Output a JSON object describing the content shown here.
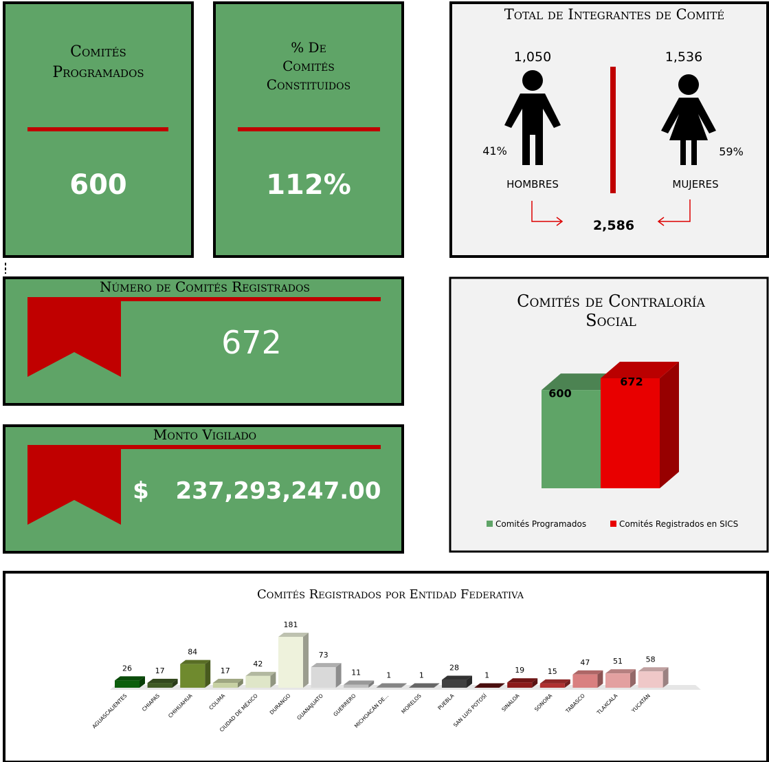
{
  "cards": [
    {
      "title_lines": [
        "Comités",
        "Programados"
      ],
      "value": "600"
    },
    {
      "title_lines": [
        "% De",
        "Comités",
        "Constituidos"
      ],
      "value": "112%"
    },
    {
      "title": "Número de Comités Registrados",
      "value": "672"
    },
    {
      "title": "Monto Vigilado",
      "currency": "$",
      "value": "237,293,247.00"
    }
  ],
  "members": {
    "title": "Total de Integrantes de Comité",
    "men": {
      "count": "1,050",
      "percent": "41%",
      "label": "HOMBRES"
    },
    "women": {
      "count": "1,536",
      "percent": "59%",
      "label": "MUJERES"
    },
    "total": "2,586"
  },
  "chart_data": [
    {
      "type": "bar3d",
      "title_lines": [
        "Comités de Contraloría",
        "Social"
      ],
      "series": [
        {
          "name": "Comités Programados",
          "color": "#5fa467",
          "values": [
            600
          ]
        },
        {
          "name": "Comités Registrados en SICS",
          "color": "#e80000",
          "values": [
            672
          ]
        }
      ],
      "legend": "bottom"
    },
    {
      "type": "bar3d",
      "title": "Comités Registrados por Entidad Federativa",
      "categories": [
        "AGUASCALIENTES",
        "CHIAPAS",
        "CHIHUAHUA",
        "COLIMA",
        "CIUDAD DE MÉXICO",
        "DURANGO",
        "GUANAJUATO",
        "GUERRERO",
        "MICHOACÁN DE...",
        "MORELOS",
        "PUEBLA",
        "SAN LUIS POTOSÍ",
        "SINALOA",
        "SONORA",
        "TABASCO",
        "TLAXCALA",
        "YUCATÁN"
      ],
      "values": [
        26,
        17,
        84,
        17,
        42,
        181,
        73,
        11,
        1,
        1,
        28,
        1,
        19,
        15,
        47,
        51,
        58
      ],
      "colors": [
        "#0b5e0b",
        "#3f5a24",
        "#6f8a2e",
        "#c7d1a3",
        "#dfe6c8",
        "#eef2dc",
        "#d9d9d9",
        "#bfbfbf",
        "#a6a6a6",
        "#808080",
        "#404040",
        "#5a1010",
        "#8b1a1a",
        "#b03030",
        "#d98080",
        "#e3a0a0",
        "#efc8c8"
      ]
    }
  ]
}
